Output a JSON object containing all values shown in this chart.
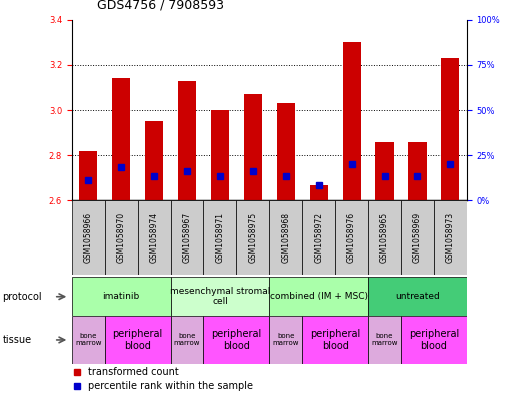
{
  "title": "GDS4756 / 7908593",
  "samples": [
    "GSM1058966",
    "GSM1058970",
    "GSM1058974",
    "GSM1058967",
    "GSM1058971",
    "GSM1058975",
    "GSM1058968",
    "GSM1058972",
    "GSM1058976",
    "GSM1058965",
    "GSM1058969",
    "GSM1058973"
  ],
  "red_values": [
    2.82,
    3.14,
    2.95,
    3.13,
    3.0,
    3.07,
    3.03,
    2.67,
    3.3,
    2.86,
    2.86,
    3.23
  ],
  "blue_values": [
    2.69,
    2.75,
    2.71,
    2.73,
    2.71,
    2.73,
    2.71,
    2.67,
    2.76,
    2.71,
    2.71,
    2.76
  ],
  "ylim": [
    2.6,
    3.4
  ],
  "yticks_left": [
    2.6,
    2.8,
    3.0,
    3.2,
    3.4
  ],
  "yticks_right": [
    0,
    25,
    50,
    75,
    100
  ],
  "bar_color": "#cc0000",
  "dot_color": "#0000cc",
  "bar_width": 0.55,
  "dot_size": 4,
  "protocols": [
    {
      "label": "imatinib",
      "start": 0,
      "end": 3,
      "color": "#aaffaa"
    },
    {
      "label": "mesenchymal stromal\ncell",
      "start": 3,
      "end": 6,
      "color": "#ccffcc"
    },
    {
      "label": "combined (IM + MSC)",
      "start": 6,
      "end": 9,
      "color": "#aaffaa"
    },
    {
      "label": "untreated",
      "start": 9,
      "end": 12,
      "color": "#44cc77"
    }
  ],
  "tissues": [
    {
      "label": "bone\nmarrow",
      "start": 0,
      "end": 1,
      "color": "#ddaadd"
    },
    {
      "label": "peripheral\nblood",
      "start": 1,
      "end": 3,
      "color": "#ff55ff"
    },
    {
      "label": "bone\nmarrow",
      "start": 3,
      "end": 4,
      "color": "#ddaadd"
    },
    {
      "label": "peripheral\nblood",
      "start": 4,
      "end": 6,
      "color": "#ff55ff"
    },
    {
      "label": "bone\nmarrow",
      "start": 6,
      "end": 7,
      "color": "#ddaadd"
    },
    {
      "label": "peripheral\nblood",
      "start": 7,
      "end": 9,
      "color": "#ff55ff"
    },
    {
      "label": "bone\nmarrow",
      "start": 9,
      "end": 10,
      "color": "#ddaadd"
    },
    {
      "label": "peripheral\nblood",
      "start": 10,
      "end": 12,
      "color": "#ff55ff"
    }
  ],
  "xlabel_bg": "#cccccc",
  "title_fontsize": 9,
  "axis_fontsize": 7,
  "tick_fontsize": 6,
  "proto_fontsize": 6.5,
  "tissue_fontsize_small": 5,
  "tissue_fontsize_large": 7,
  "legend_fontsize": 7
}
